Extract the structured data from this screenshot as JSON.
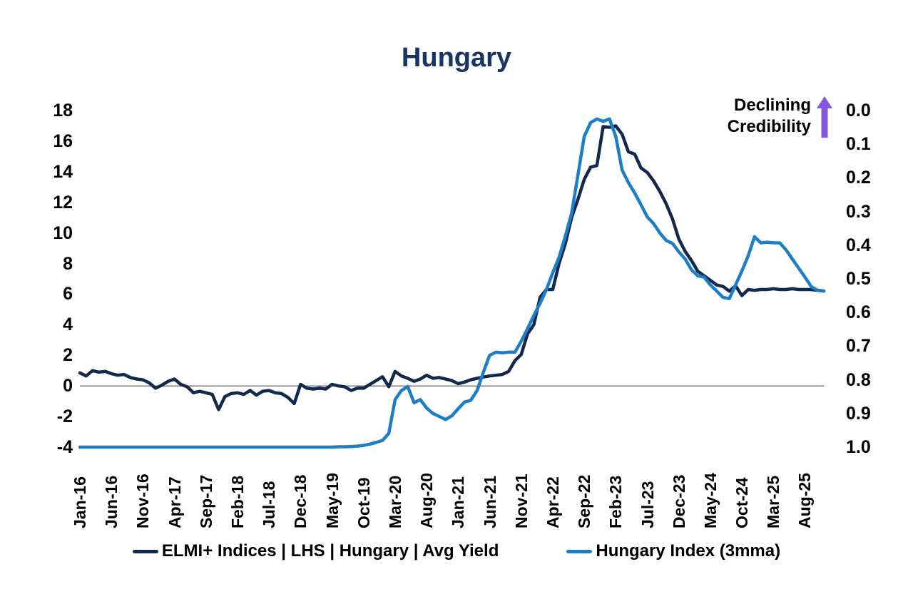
{
  "title": "Hungary",
  "colors": {
    "title": "#1a3562",
    "text": "#000000",
    "navy_series": "#12294d",
    "blue_series": "#1d7ec8",
    "zero_line": "#7a7a7a",
    "annotation_arrow": "#8655e0"
  },
  "annotation": {
    "line1": "Declining",
    "line2": "Credibility",
    "arrow_icon": "up-arrow",
    "arrow_color": "#8655e0"
  },
  "legend": [
    {
      "key": "avg-yield",
      "label": "ELMI+ Indices | LHS | Hungary | Avg Yield",
      "color": "#12294d"
    },
    {
      "key": "hungary-index",
      "label": "Hungary Index (3mma)",
      "color": "#1d7ec8"
    }
  ],
  "chart_data": {
    "type": "line",
    "title": "Hungary",
    "frequency": "monthly",
    "x_start": "Jan-16",
    "x_end": "Nov-25",
    "tick_every": 5,
    "x_tick_labels": [
      "Jan-16",
      "Jun-16",
      "Nov-16",
      "Apr-17",
      "Sep-17",
      "Feb-18",
      "Jul-18",
      "Dec-18",
      "May-19",
      "Oct-19",
      "Mar-20",
      "Aug-20",
      "Jan-21",
      "Jun-21",
      "Nov-21",
      "Apr-22",
      "Sep-22",
      "Feb-23",
      "Jul-23",
      "Dec-23",
      "May-24",
      "Oct-24",
      "Mar-25",
      "Aug-25"
    ],
    "left_axis": {
      "ticks": [
        "18",
        "16",
        "14",
        "12",
        "10",
        "8",
        "6",
        "4",
        "2",
        "0",
        "-2",
        "-4"
      ],
      "range": [
        -4,
        18
      ]
    },
    "right_axis": {
      "ticks": [
        "0.0",
        "0.1",
        "0.2",
        "0.3",
        "0.4",
        "0.5",
        "0.6",
        "0.7",
        "0.8",
        "0.9",
        "1.0"
      ],
      "range": [
        0,
        1
      ],
      "inverted_visual_sense": true
    },
    "zero_line": {
      "axis": "left",
      "value": 0,
      "color": "#7a7a7a"
    },
    "series": [
      {
        "key": "avg-yield",
        "name": "ELMI+ Indices | LHS | Hungary | Avg Yield",
        "axis": "left",
        "color": "#12294d",
        "values": [
          0.85,
          0.65,
          1.0,
          0.9,
          0.95,
          0.8,
          0.7,
          0.75,
          0.55,
          0.45,
          0.4,
          0.2,
          -0.15,
          0.05,
          0.3,
          0.45,
          0.1,
          -0.05,
          -0.45,
          -0.35,
          -0.45,
          -0.55,
          -1.55,
          -0.7,
          -0.5,
          -0.45,
          -0.55,
          -0.3,
          -0.6,
          -0.35,
          -0.3,
          -0.45,
          -0.5,
          -0.75,
          -1.15,
          0.1,
          -0.15,
          -0.2,
          -0.15,
          -0.2,
          0.1,
          0.0,
          -0.05,
          -0.3,
          -0.15,
          -0.15,
          0.1,
          0.35,
          0.6,
          -0.05,
          0.95,
          0.65,
          0.5,
          0.3,
          0.45,
          0.7,
          0.5,
          0.55,
          0.45,
          0.35,
          0.15,
          0.25,
          0.4,
          0.5,
          0.58,
          0.65,
          0.7,
          0.75,
          0.95,
          1.65,
          2.05,
          3.4,
          4.0,
          5.8,
          6.3,
          6.3,
          8.0,
          9.3,
          11.0,
          12.2,
          13.5,
          14.3,
          14.4,
          16.95,
          16.9,
          17.0,
          16.45,
          15.3,
          15.15,
          14.25,
          13.95,
          13.4,
          12.7,
          11.9,
          10.9,
          9.6,
          8.8,
          8.2,
          7.5,
          7.2,
          6.9,
          6.6,
          6.5,
          6.2,
          6.55,
          5.9,
          6.3,
          6.25,
          6.3,
          6.3,
          6.35,
          6.3,
          6.3,
          6.35,
          6.3,
          6.3,
          6.3,
          6.25,
          6.2
        ]
      },
      {
        "key": "hungary-index",
        "name": "Hungary Index (3mma)",
        "axis": "right",
        "color": "#1d7ec8",
        "values": [
          1.0,
          1.0,
          1.0,
          1.0,
          1.0,
          1.0,
          1.0,
          1.0,
          1.0,
          1.0,
          1.0,
          1.0,
          1.0,
          1.0,
          1.0,
          1.0,
          1.0,
          1.0,
          1.0,
          1.0,
          1.0,
          1.0,
          1.0,
          1.0,
          1.0,
          1.0,
          1.0,
          1.0,
          1.0,
          1.0,
          1.0,
          1.0,
          1.0,
          1.0,
          1.0,
          1.0,
          1.0,
          1.0,
          1.0,
          1.0,
          1.0,
          0.999,
          0.999,
          0.998,
          0.997,
          0.995,
          0.991,
          0.986,
          0.98,
          0.959,
          0.859,
          0.832,
          0.82,
          0.868,
          0.859,
          0.884,
          0.9,
          0.909,
          0.918,
          0.907,
          0.886,
          0.866,
          0.861,
          0.832,
          0.777,
          0.727,
          0.718,
          0.72,
          0.718,
          0.718,
          0.686,
          0.648,
          0.609,
          0.573,
          0.532,
          0.482,
          0.436,
          0.373,
          0.305,
          0.191,
          0.077,
          0.036,
          0.025,
          0.032,
          0.025,
          0.077,
          0.177,
          0.214,
          0.245,
          0.28,
          0.316,
          0.336,
          0.364,
          0.386,
          0.395,
          0.42,
          0.441,
          0.473,
          0.491,
          0.495,
          0.518,
          0.536,
          0.555,
          0.559,
          0.518,
          0.477,
          0.432,
          0.375,
          0.393,
          0.391,
          0.393,
          0.393,
          0.414,
          0.441,
          0.468,
          0.495,
          0.523,
          0.534,
          0.536
        ]
      }
    ]
  }
}
